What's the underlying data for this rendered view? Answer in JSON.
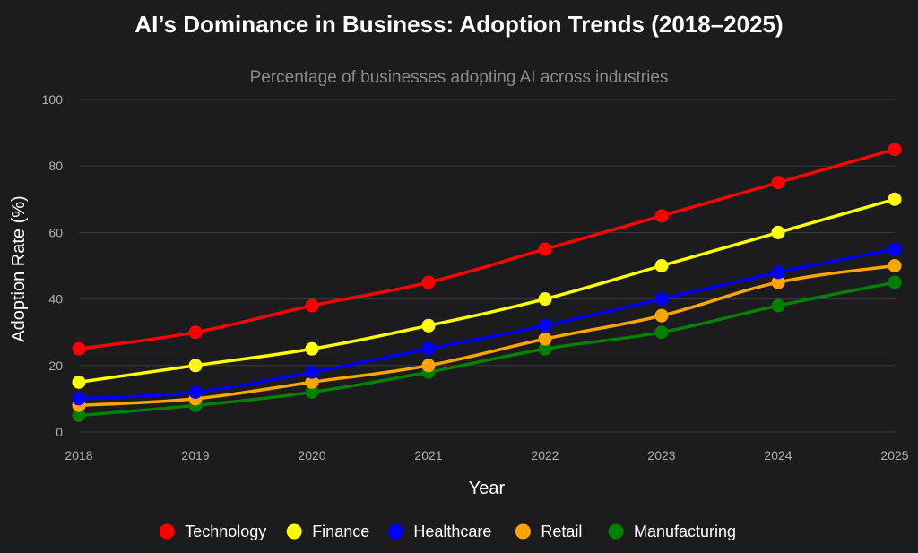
{
  "chart_data": {
    "type": "line",
    "title": "AI’s Dominance in Business: Adoption Trends (2018–2025)",
    "subtitle": "Percentage of businesses adopting AI across industries",
    "xlabel": "Year",
    "ylabel": "Adoption Rate (%)",
    "x": [
      "2018",
      "2019",
      "2020",
      "2021",
      "2022",
      "2023",
      "2024",
      "2025"
    ],
    "ylim": [
      0,
      100
    ],
    "yticks": [
      "0",
      "20",
      "40",
      "60",
      "80",
      "100"
    ],
    "grid": true,
    "legend_position": "bottom",
    "series": [
      {
        "name": "Technology",
        "color": "#ff0000",
        "values": [
          25,
          30,
          38,
          45,
          55,
          65,
          75,
          85
        ]
      },
      {
        "name": "Finance",
        "color": "#ffff00",
        "values": [
          15,
          20,
          25,
          32,
          40,
          50,
          60,
          70
        ]
      },
      {
        "name": "Healthcare",
        "color": "#0000ff",
        "values": [
          10,
          12,
          18,
          25,
          32,
          40,
          48,
          55
        ]
      },
      {
        "name": "Retail",
        "color": "#ffa500",
        "values": [
          8,
          10,
          15,
          20,
          28,
          35,
          45,
          50
        ]
      },
      {
        "name": "Manufacturing",
        "color": "#008000",
        "values": [
          5,
          8,
          12,
          18,
          25,
          30,
          38,
          45
        ]
      }
    ]
  }
}
